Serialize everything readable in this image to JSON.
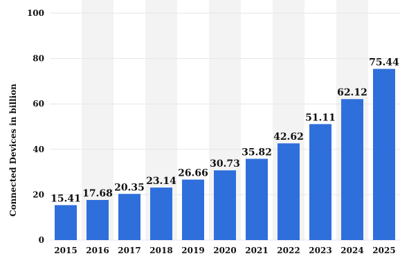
{
  "colors": {
    "bar": "#2f6fdb",
    "stripe": "#f3f3f3",
    "grid": "#e6e6e6",
    "text": "#111111"
  },
  "chart_data": {
    "type": "bar",
    "title": "",
    "xlabel": "",
    "ylabel": "Connected Devices in billion",
    "ylim": [
      0,
      100
    ],
    "yticks": [
      0,
      20,
      40,
      60,
      80,
      100
    ],
    "grid": true,
    "legend": "none",
    "categories": [
      "2015",
      "2016",
      "2017",
      "2018",
      "2019",
      "2020",
      "2021",
      "2022",
      "2023",
      "2024",
      "2025"
    ],
    "values": [
      15.41,
      17.68,
      20.35,
      23.14,
      26.66,
      30.73,
      35.82,
      42.62,
      51.11,
      62.12,
      75.44
    ],
    "data_labels": [
      "15.41",
      "17.68",
      "20.35",
      "23.14",
      "26.66",
      "30.73",
      "35.82",
      "42.62",
      "51.11",
      "62.12",
      "75.44"
    ]
  }
}
